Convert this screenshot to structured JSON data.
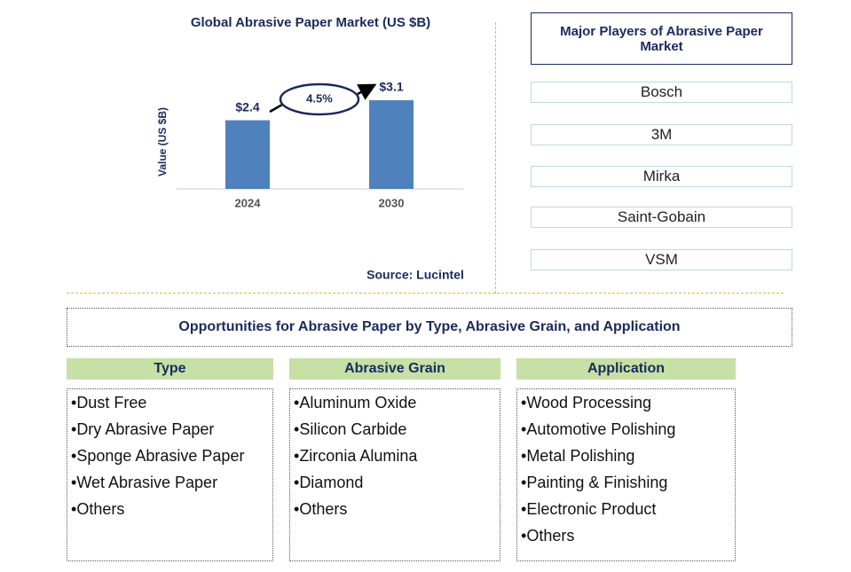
{
  "chart_data": {
    "type": "bar",
    "title": "Global Abrasive Paper Market (US $B)",
    "y_label": "Value (US $B)",
    "categories": [
      "2024",
      "2030"
    ],
    "values": [
      2.4,
      3.1
    ],
    "value_labels": [
      "$2.4",
      "$3.1"
    ],
    "color": "#4f81bd",
    "ylim": [
      0,
      4
    ],
    "annotation": "4.5%",
    "source": "Source: Lucintel"
  },
  "players": {
    "title": "Major Players of Abrasive Paper Market",
    "items": [
      "Bosch",
      "3M",
      "Mirka",
      "Saint-Gobain",
      "VSM"
    ]
  },
  "opportunities": {
    "title": "Opportunities for Abrasive Paper by Type, Abrasive Grain, and Application",
    "columns": [
      {
        "header": "Type",
        "items": [
          "Dust Free",
          "Dry Abrasive Paper",
          "Sponge Abrasive Paper",
          "Wet Abrasive Paper",
          "Others"
        ]
      },
      {
        "header": "Abrasive Grain",
        "items": [
          "Aluminum Oxide",
          "Silicon Carbide",
          "Zirconia Alumina",
          "Diamond",
          "Others"
        ]
      },
      {
        "header": "Application",
        "items": [
          "Wood Processing",
          "Automotive Polishing",
          "Metal Polishing",
          "Painting & Finishing",
          "Electronic Product",
          "Others"
        ]
      }
    ]
  }
}
